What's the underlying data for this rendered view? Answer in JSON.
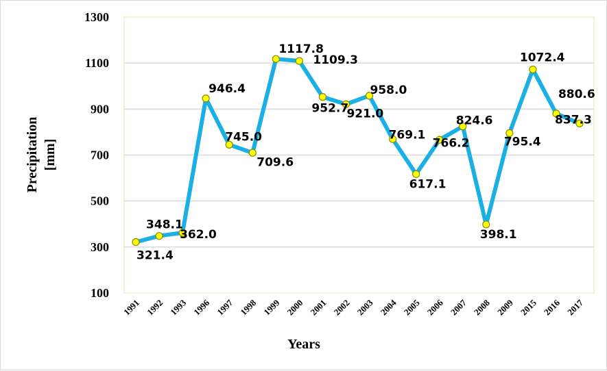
{
  "chart_data": {
    "type": "line",
    "categories": [
      "1991",
      "1992",
      "1993",
      "1996",
      "1997",
      "1998",
      "1999",
      "2000",
      "2001",
      "2002",
      "2003",
      "2004",
      "2005",
      "2006",
      "2007",
      "2008",
      "2009",
      "2015",
      "2016",
      "2017"
    ],
    "series": [
      {
        "values": [
          321.4,
          348.1,
          362.0,
          946.4,
          745.0,
          709.6,
          1117.8,
          1109.3,
          952.7,
          921.0,
          958.0,
          769.1,
          617.1,
          766.2,
          824.6,
          398.1,
          795.4,
          1072.4,
          880.6,
          837.3
        ],
        "labels": [
          "321.4",
          "348.1",
          "362.0",
          "946.4",
          "745.0",
          "709.6",
          "1117.8",
          "1109.3",
          "952.7",
          "921.0",
          "958.0",
          "769.1",
          "617.1",
          "766.2",
          "824.6",
          "398.1",
          "795.4",
          "1072.4",
          "880.6",
          "837.3"
        ]
      }
    ],
    "xlabel": "Years",
    "ylabel_line1": "Precipitation",
    "ylabel_line2": "[mm]",
    "ylim": [
      100,
      1300
    ],
    "yticks": [
      100,
      300,
      500,
      700,
      900,
      1100,
      1300
    ],
    "ytick_labels": [
      "100",
      "300",
      "500",
      "700",
      "900",
      "1100",
      "1300"
    ],
    "grid": true,
    "colors": {
      "line": "#1ab0e6",
      "marker_fill": "#ffff00",
      "marker_stroke": "#8a8a00",
      "grid": "#d9d9d9",
      "plot_border": "#f2f6d6"
    }
  }
}
